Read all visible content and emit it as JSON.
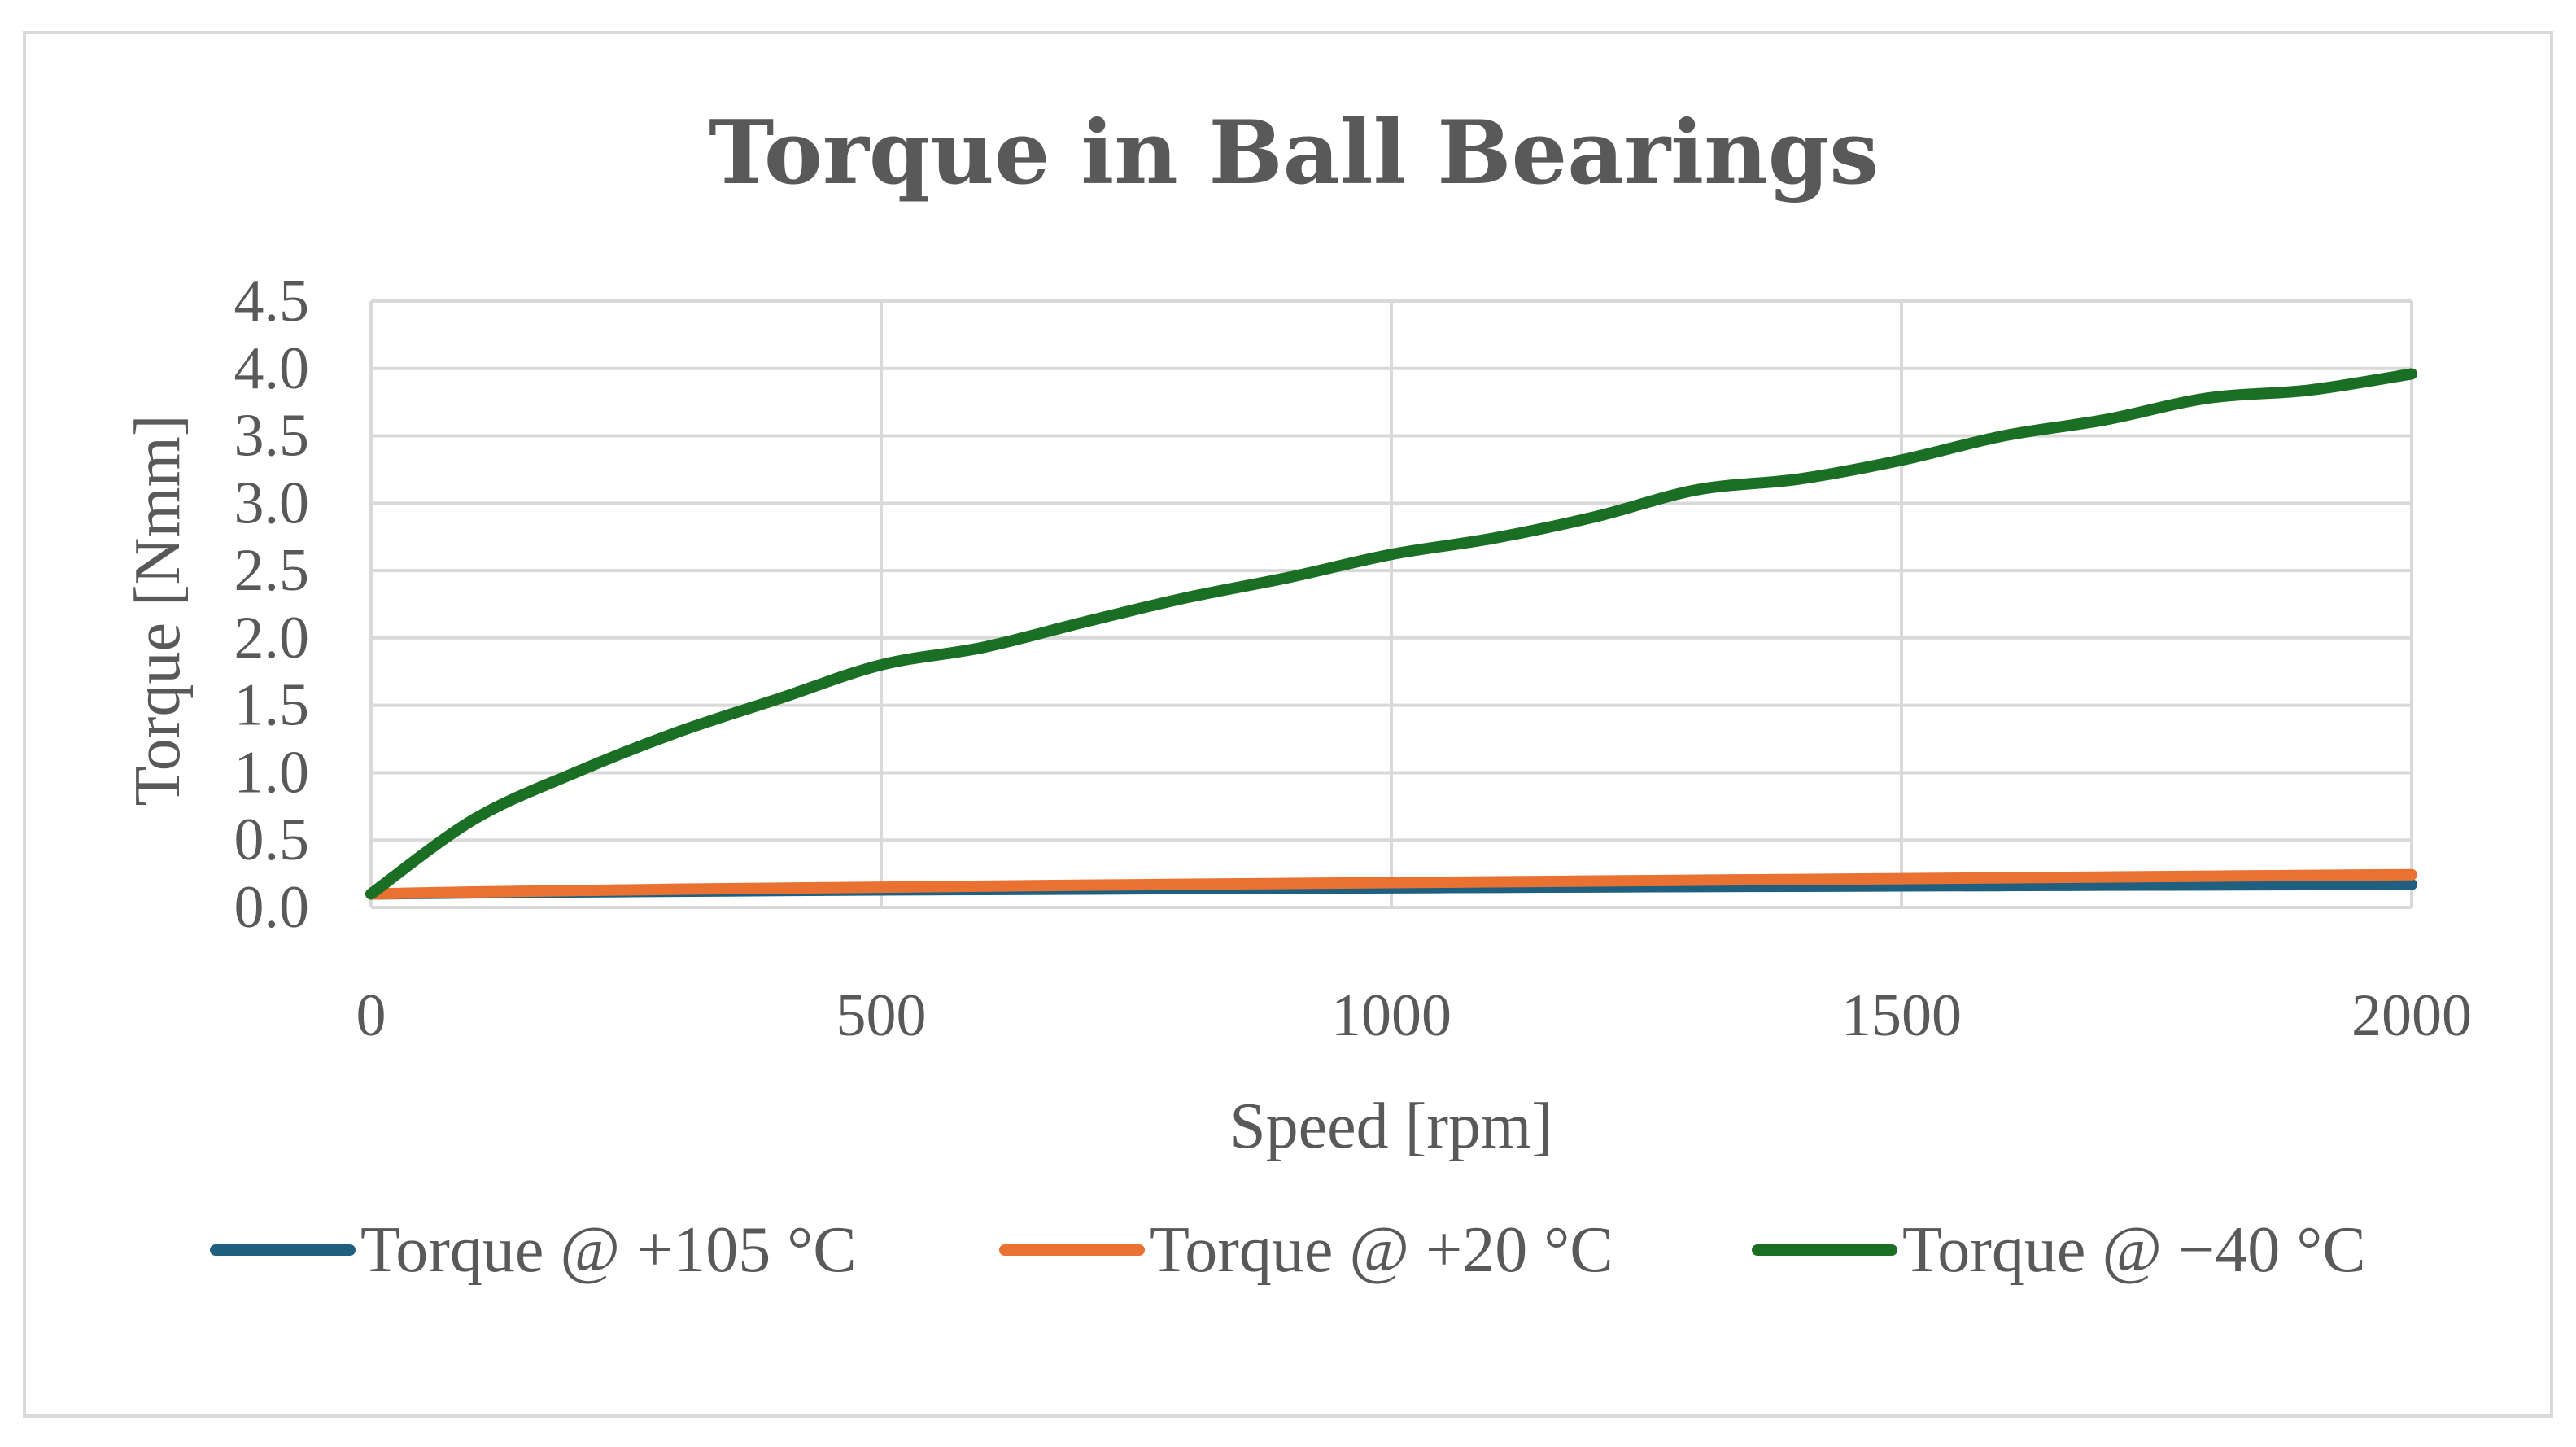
{
  "chart_data": {
    "type": "line",
    "title": "Torque in Ball Bearings",
    "xlabel": "Speed [rpm]",
    "ylabel": "Torque [Nmm]",
    "xlim": [
      0,
      2000
    ],
    "ylim": [
      0,
      4.5
    ],
    "x_ticks": [
      "0",
      "500",
      "1000",
      "1500",
      "2000"
    ],
    "y_ticks": [
      "0.0",
      "0.5",
      "1.0",
      "1.5",
      "2.0",
      "2.5",
      "3.0",
      "3.5",
      "4.0",
      "4.5"
    ],
    "grid": true,
    "legend_position": "bottom",
    "x": [
      0,
      100,
      200,
      300,
      400,
      500,
      600,
      700,
      800,
      900,
      1000,
      1100,
      1200,
      1300,
      1400,
      1500,
      1600,
      1700,
      1800,
      1900,
      2000
    ],
    "series": [
      {
        "name": "Torque @ +105 °C",
        "color": "#1f5f7f",
        "values": [
          0.1,
          0.108,
          0.115,
          0.12,
          0.125,
          0.13,
          0.133,
          0.136,
          0.14,
          0.143,
          0.146,
          0.149,
          0.152,
          0.155,
          0.157,
          0.16,
          0.162,
          0.165,
          0.167,
          0.169,
          0.17
        ]
      },
      {
        "name": "Torque @ +20 °C",
        "color": "#e97132",
        "values": [
          0.1,
          0.115,
          0.125,
          0.135,
          0.143,
          0.15,
          0.158,
          0.165,
          0.172,
          0.178,
          0.184,
          0.19,
          0.196,
          0.202,
          0.208,
          0.214,
          0.22,
          0.226,
          0.232,
          0.238,
          0.243
        ]
      },
      {
        "name": "Torque @ −40 °C",
        "color": "#1b6f25",
        "values": [
          0.1,
          0.65,
          1.0,
          1.3,
          1.55,
          1.8,
          1.93,
          2.12,
          2.3,
          2.45,
          2.62,
          2.74,
          2.9,
          3.1,
          3.18,
          3.32,
          3.5,
          3.62,
          3.78,
          3.84,
          3.96
        ]
      }
    ]
  }
}
